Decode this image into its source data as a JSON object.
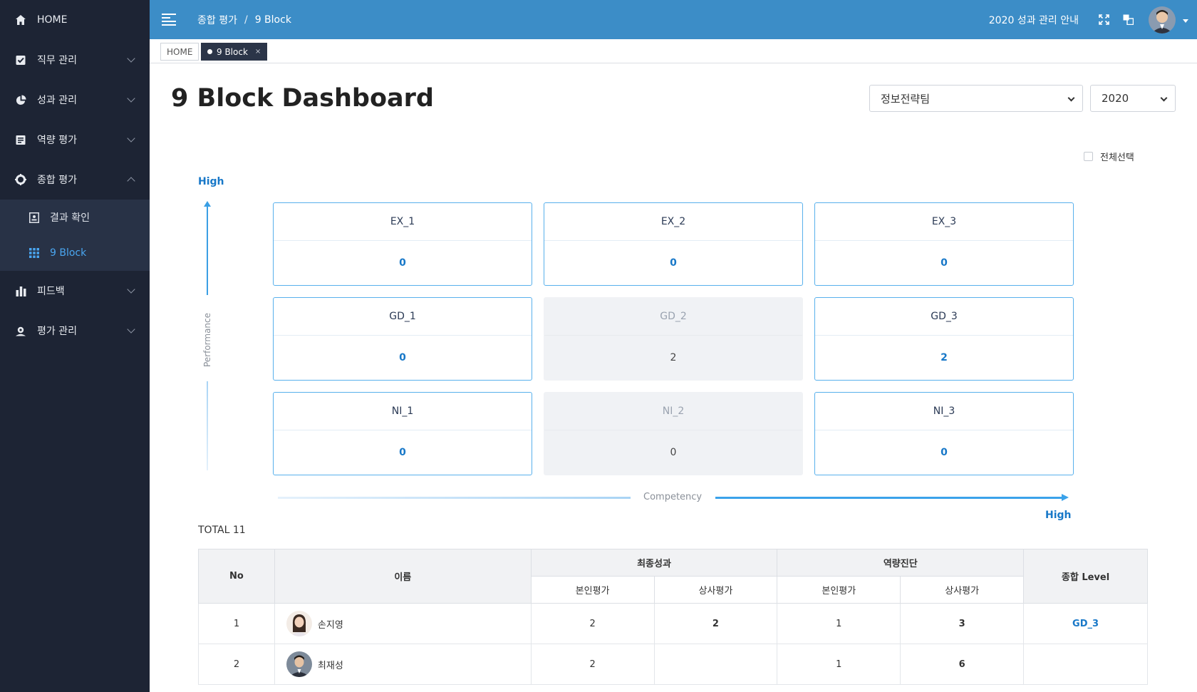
{
  "sidebar": {
    "items": [
      {
        "label": "HOME",
        "icon": "home-icon"
      },
      {
        "label": "직무 관리",
        "icon": "check-square-icon"
      },
      {
        "label": "성과 관리",
        "icon": "pie-chart-icon"
      },
      {
        "label": "역량 평가",
        "icon": "document-icon"
      },
      {
        "label": "종합 평가",
        "icon": "target-icon"
      },
      {
        "label": "피드백",
        "icon": "bar-chart-icon"
      },
      {
        "label": "평가 관리",
        "icon": "user-settings-icon"
      }
    ],
    "submenu": [
      {
        "label": "결과 확인",
        "icon": "report-icon"
      },
      {
        "label": "9 Block",
        "icon": "grid-icon",
        "active": true
      }
    ]
  },
  "topbar": {
    "breadcrumb": [
      "종합 평가",
      "9 Block"
    ],
    "breadcrumb_sep": "/",
    "notice": "2020 성과 관리 안내",
    "accent": "#3c8dc7"
  },
  "tabs": {
    "home": "HOME",
    "current": "9 Block",
    "close": "×"
  },
  "page": {
    "title": "9 Block Dashboard",
    "team": "정보전략팀",
    "year": "2020",
    "select_all": "전체선택",
    "y_high": "High",
    "x_high": "High",
    "y_axis": "Performance",
    "x_axis": "Competency",
    "total": "TOTAL 11"
  },
  "blocks": [
    {
      "name": "EX_1",
      "value": "0",
      "active": true
    },
    {
      "name": "EX_2",
      "value": "0",
      "active": true
    },
    {
      "name": "EX_3",
      "value": "0",
      "active": true
    },
    {
      "name": "GD_1",
      "value": "0",
      "active": true
    },
    {
      "name": "GD_2",
      "value": "2",
      "active": false
    },
    {
      "name": "GD_3",
      "value": "2",
      "active": true
    },
    {
      "name": "NI_1",
      "value": "0",
      "active": true
    },
    {
      "name": "NI_2",
      "value": "0",
      "active": false
    },
    {
      "name": "NI_3",
      "value": "0",
      "active": true
    }
  ],
  "table": {
    "headers": {
      "no": "No",
      "name": "이름",
      "final_perf": "최종성과",
      "competency": "역량진단",
      "level": "종합 Level",
      "self": "본인평가",
      "boss": "상사평가"
    },
    "rows": [
      {
        "no": "1",
        "name": "손지영",
        "perf_self": "2",
        "perf_boss": "2",
        "comp_self": "1",
        "comp_boss": "3",
        "level": "GD_3"
      },
      {
        "no": "2",
        "name": "최재성",
        "perf_self": "2",
        "perf_boss": "",
        "comp_self": "1",
        "comp_boss": "6",
        "level": ""
      }
    ]
  }
}
